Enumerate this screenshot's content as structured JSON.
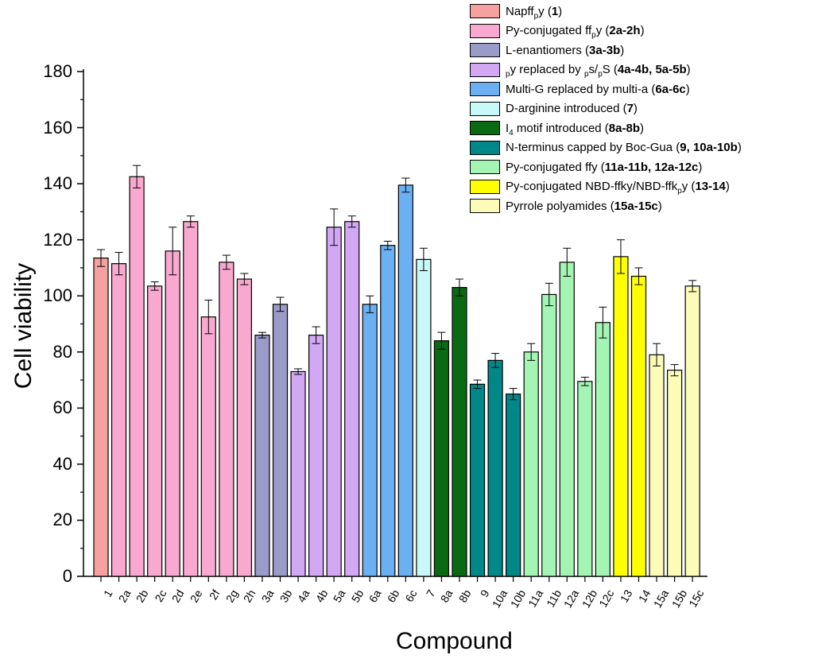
{
  "chart_data": {
    "type": "bar",
    "title": "",
    "xlabel": "Compound",
    "ylabel": "Cell viability",
    "ylim": [
      0,
      180
    ],
    "yticks": [
      0,
      20,
      40,
      60,
      80,
      100,
      120,
      140,
      160,
      180
    ],
    "grid": false,
    "legend_position": "top-right",
    "categories": [
      "1",
      "2a",
      "2b",
      "2c",
      "2d",
      "2e",
      "2f",
      "2g",
      "2h",
      "3a",
      "3b",
      "4a",
      "4b",
      "5a",
      "5b",
      "6a",
      "6b",
      "6c",
      "7",
      "8a",
      "8b",
      "9",
      "10a",
      "10b",
      "11a",
      "11b",
      "12a",
      "12b",
      "12c",
      "13",
      "14",
      "15a",
      "15b",
      "15c"
    ],
    "values": [
      113.5,
      111.5,
      142.5,
      103.5,
      116,
      126.5,
      92.5,
      112,
      106,
      86,
      97,
      73,
      86,
      124.5,
      126.5,
      97,
      118,
      139.5,
      113,
      84,
      103,
      68.5,
      77,
      65,
      80,
      100.5,
      112,
      69.5,
      90.5,
      114,
      107,
      79,
      73.5,
      103.5
    ],
    "errors": [
      3,
      4,
      4,
      1.5,
      8.5,
      2,
      6,
      2.5,
      2,
      1,
      2.5,
      1,
      3,
      6.5,
      2,
      3,
      1.5,
      2.5,
      4,
      3,
      3,
      1.5,
      2.5,
      2,
      3,
      4,
      5,
      1.5,
      5.5,
      6,
      3,
      4,
      2,
      2
    ],
    "groups": [
      0,
      1,
      1,
      1,
      1,
      1,
      1,
      1,
      1,
      2,
      2,
      3,
      3,
      3,
      3,
      4,
      4,
      4,
      5,
      6,
      6,
      7,
      7,
      7,
      8,
      8,
      8,
      8,
      8,
      9,
      9,
      10,
      10,
      10
    ],
    "legend": [
      {
        "color": "#f7a0a0",
        "html": "Napff<sub>p</sub>y (<b>1</b>)"
      },
      {
        "color": "#f9a8cf",
        "html": "Py-conjugated ff<sub>p</sub>y (<b>2a-2h</b>)"
      },
      {
        "color": "#9b9bc9",
        "html": "L-enantiomers (<b>3a-3b</b>)"
      },
      {
        "color": "#d2a8f5",
        "html": "<sub>p</sub>y replaced by <sub>p</sub>s/<sub>p</sub>S (<b>4a-4b, 5a-5b</b>)"
      },
      {
        "color": "#6cb0f4",
        "html": "Multi-G replaced by multi-a (<b>6a-6c</b>)"
      },
      {
        "color": "#c8f8f8",
        "html": "D-arginine introduced (<b>7</b>)"
      },
      {
        "color": "#0a6a14",
        "html": "I<sub>4</sub> motif introduced (<b>8a-8b</b>)"
      },
      {
        "color": "#008888",
        "html": "N-terminus capped by Boc-Gua (<b>9, 10a-10b</b>)"
      },
      {
        "color": "#a4f4b4",
        "html": "Py-conjugated ffy (<b>11a-11b, 12a-12c</b>)"
      },
      {
        "color": "#ffff00",
        "html": "Py-conjugated NBD-ffky/NBD-ffk<sub>p</sub>y (<b>13-14</b>)"
      },
      {
        "color": "#fcfcb8",
        "html": "Pyrrole polyamides (<b>15a-15c</b>)"
      }
    ]
  }
}
